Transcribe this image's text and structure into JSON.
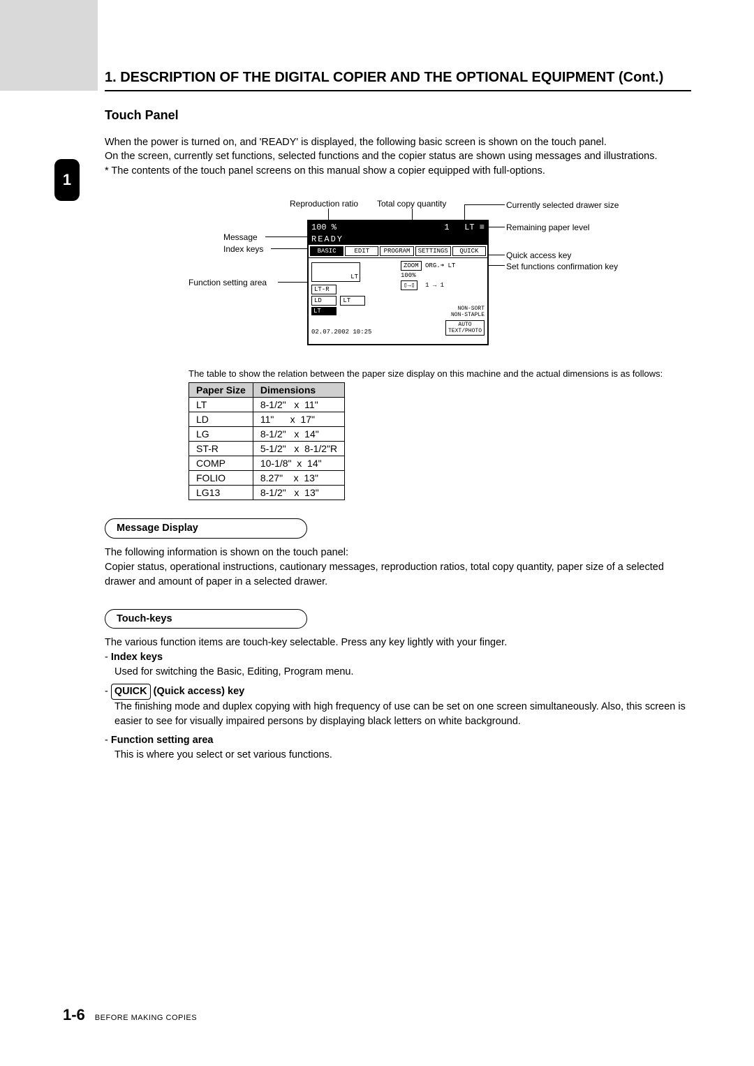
{
  "chapter_tab": "1",
  "heading": "1. DESCRIPTION OF THE DIGITAL COPIER AND THE OPTIONAL EQUIPMENT (Cont.)",
  "subheading": "Touch Panel",
  "intro": {
    "p1": "When the power is turned on, and 'READY' is displayed, the following basic screen is shown on the touch panel.",
    "p2": "On the screen, currently set functions, selected functions and the copier status are shown using messages and illustrations.",
    "p3": "* The contents of the touch panel screens on this manual show a copier equipped with full-options."
  },
  "diagram": {
    "labels_left": {
      "repro_ratio": "Reproduction ratio",
      "total_qty": "Total copy quantity",
      "message": "Message",
      "index_keys": "Index keys",
      "func_area": "Function setting area"
    },
    "labels_right": {
      "drawer_size": "Currently selected drawer size",
      "paper_level": "Remaining paper level",
      "quick_key": "Quick access key",
      "confirm_key": "Set functions confirmation key"
    },
    "panel": {
      "ratio": "100  %",
      "qty": "1",
      "drawer": "LT",
      "ready": "READY",
      "tabs": [
        "BASIC",
        "EDIT",
        "PROGRAM",
        "SETTINGS",
        "QUICK"
      ],
      "zoom": "ZOOM",
      "zoom_val": "100%",
      "org": "ORG.➜ LT",
      "dup": "1 → 1",
      "sort": "NON-SORT\nNON-STAPLE",
      "mode": "AUTO\nTEXT/PHOTO",
      "sizes_col": [
        "LT-R",
        "LD",
        "LT"
      ],
      "lt_top": "LT",
      "date": "02.07.2002 10:25"
    }
  },
  "table_note": "The table to show the relation between the paper size display on this machine and the actual dimensions is as follows:",
  "paper_table": {
    "headers": [
      "Paper Size",
      "Dimensions"
    ],
    "rows": [
      [
        "LT",
        "8-1/2\"   x  11\""
      ],
      [
        "LD",
        "11\"      x  17\""
      ],
      [
        "LG",
        "8-1/2\"   x  14\""
      ],
      [
        "ST-R",
        "5-1/2\"   x  8-1/2\"R"
      ],
      [
        "COMP",
        "10-1/8\"  x  14\""
      ],
      [
        "FOLIO",
        "8.27\"    x  13\""
      ],
      [
        "LG13",
        "8-1/2\"   x  13\""
      ]
    ]
  },
  "msg_display": {
    "title": "Message Display",
    "p1": "The following information is shown on the touch panel:",
    "p2": "Copier status, operational instructions, cautionary messages, reproduction ratios, total copy quantity, paper size of a selected drawer and amount of paper in a selected drawer."
  },
  "touch_keys": {
    "title": "Touch-keys",
    "intro": "The various function items are touch-key selectable. Press any key lightly with your finger.",
    "items": [
      {
        "lead": "Index keys",
        "txt": "Used for switching the Basic, Editing, Program menu."
      },
      {
        "quick_label": "QUICK",
        "lead_suffix": " (Quick access) key",
        "txt": "The finishing mode and duplex copying with high frequency of use can be set on one screen simultaneously.  Also, this screen is easier to see for visually impaired persons by displaying black letters on white background."
      },
      {
        "lead": "Function setting area",
        "txt": "This is where you select or set various functions."
      }
    ]
  },
  "footer": {
    "page": "1-6",
    "caption": "BEFORE MAKING COPIES"
  }
}
